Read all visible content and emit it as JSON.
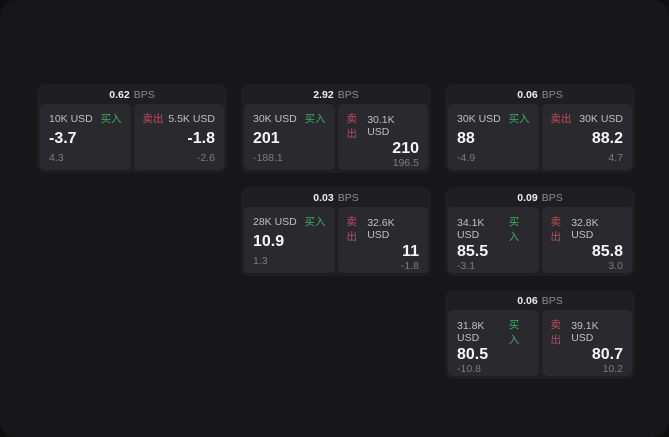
{
  "labels": {
    "bps_suffix": "BPS",
    "buy": "买入",
    "sell": "卖出"
  },
  "colors": {
    "buy_green": "#3fa968",
    "sell_red": "#c4485e",
    "window_bg": "#171719",
    "card_bg": "#1f1f22",
    "panel_bg": "#2a2a2e"
  },
  "cards": [
    {
      "col": 1,
      "row": 1,
      "bps": "0.62",
      "buy": {
        "amount": "10K USD",
        "value": "-3.7",
        "sub": "4.3"
      },
      "sell": {
        "amount": "5.5K USD",
        "value": "-1.8",
        "sub": "-2.6"
      }
    },
    {
      "col": 2,
      "row": 1,
      "bps": "2.92",
      "buy": {
        "amount": "30K USD",
        "value": "201",
        "sub": "-188.1"
      },
      "sell": {
        "amount": "30.1K USD",
        "value": "210",
        "sub": "196.5"
      }
    },
    {
      "col": 3,
      "row": 1,
      "bps": "0.06",
      "buy": {
        "amount": "30K USD",
        "value": "88",
        "sub": "-4.9"
      },
      "sell": {
        "amount": "30K USD",
        "value": "88.2",
        "sub": "4.7"
      }
    },
    {
      "col": 2,
      "row": 2,
      "bps": "0.03",
      "buy": {
        "amount": "28K USD",
        "value": "10.9",
        "sub": "1.3"
      },
      "sell": {
        "amount": "32.6K USD",
        "value": "11",
        "sub": "-1.8"
      }
    },
    {
      "col": 3,
      "row": 2,
      "bps": "0.09",
      "buy": {
        "amount": "34.1K USD",
        "value": "85.5",
        "sub": "-3.1"
      },
      "sell": {
        "amount": "32.8K USD",
        "value": "85.8",
        "sub": "3.0"
      }
    },
    {
      "col": 3,
      "row": 3,
      "bps": "0.06",
      "buy": {
        "amount": "31.8K USD",
        "value": "80.5",
        "sub": "-10.8"
      },
      "sell": {
        "amount": "39.1K USD",
        "value": "80.7",
        "sub": "10.2"
      }
    }
  ]
}
